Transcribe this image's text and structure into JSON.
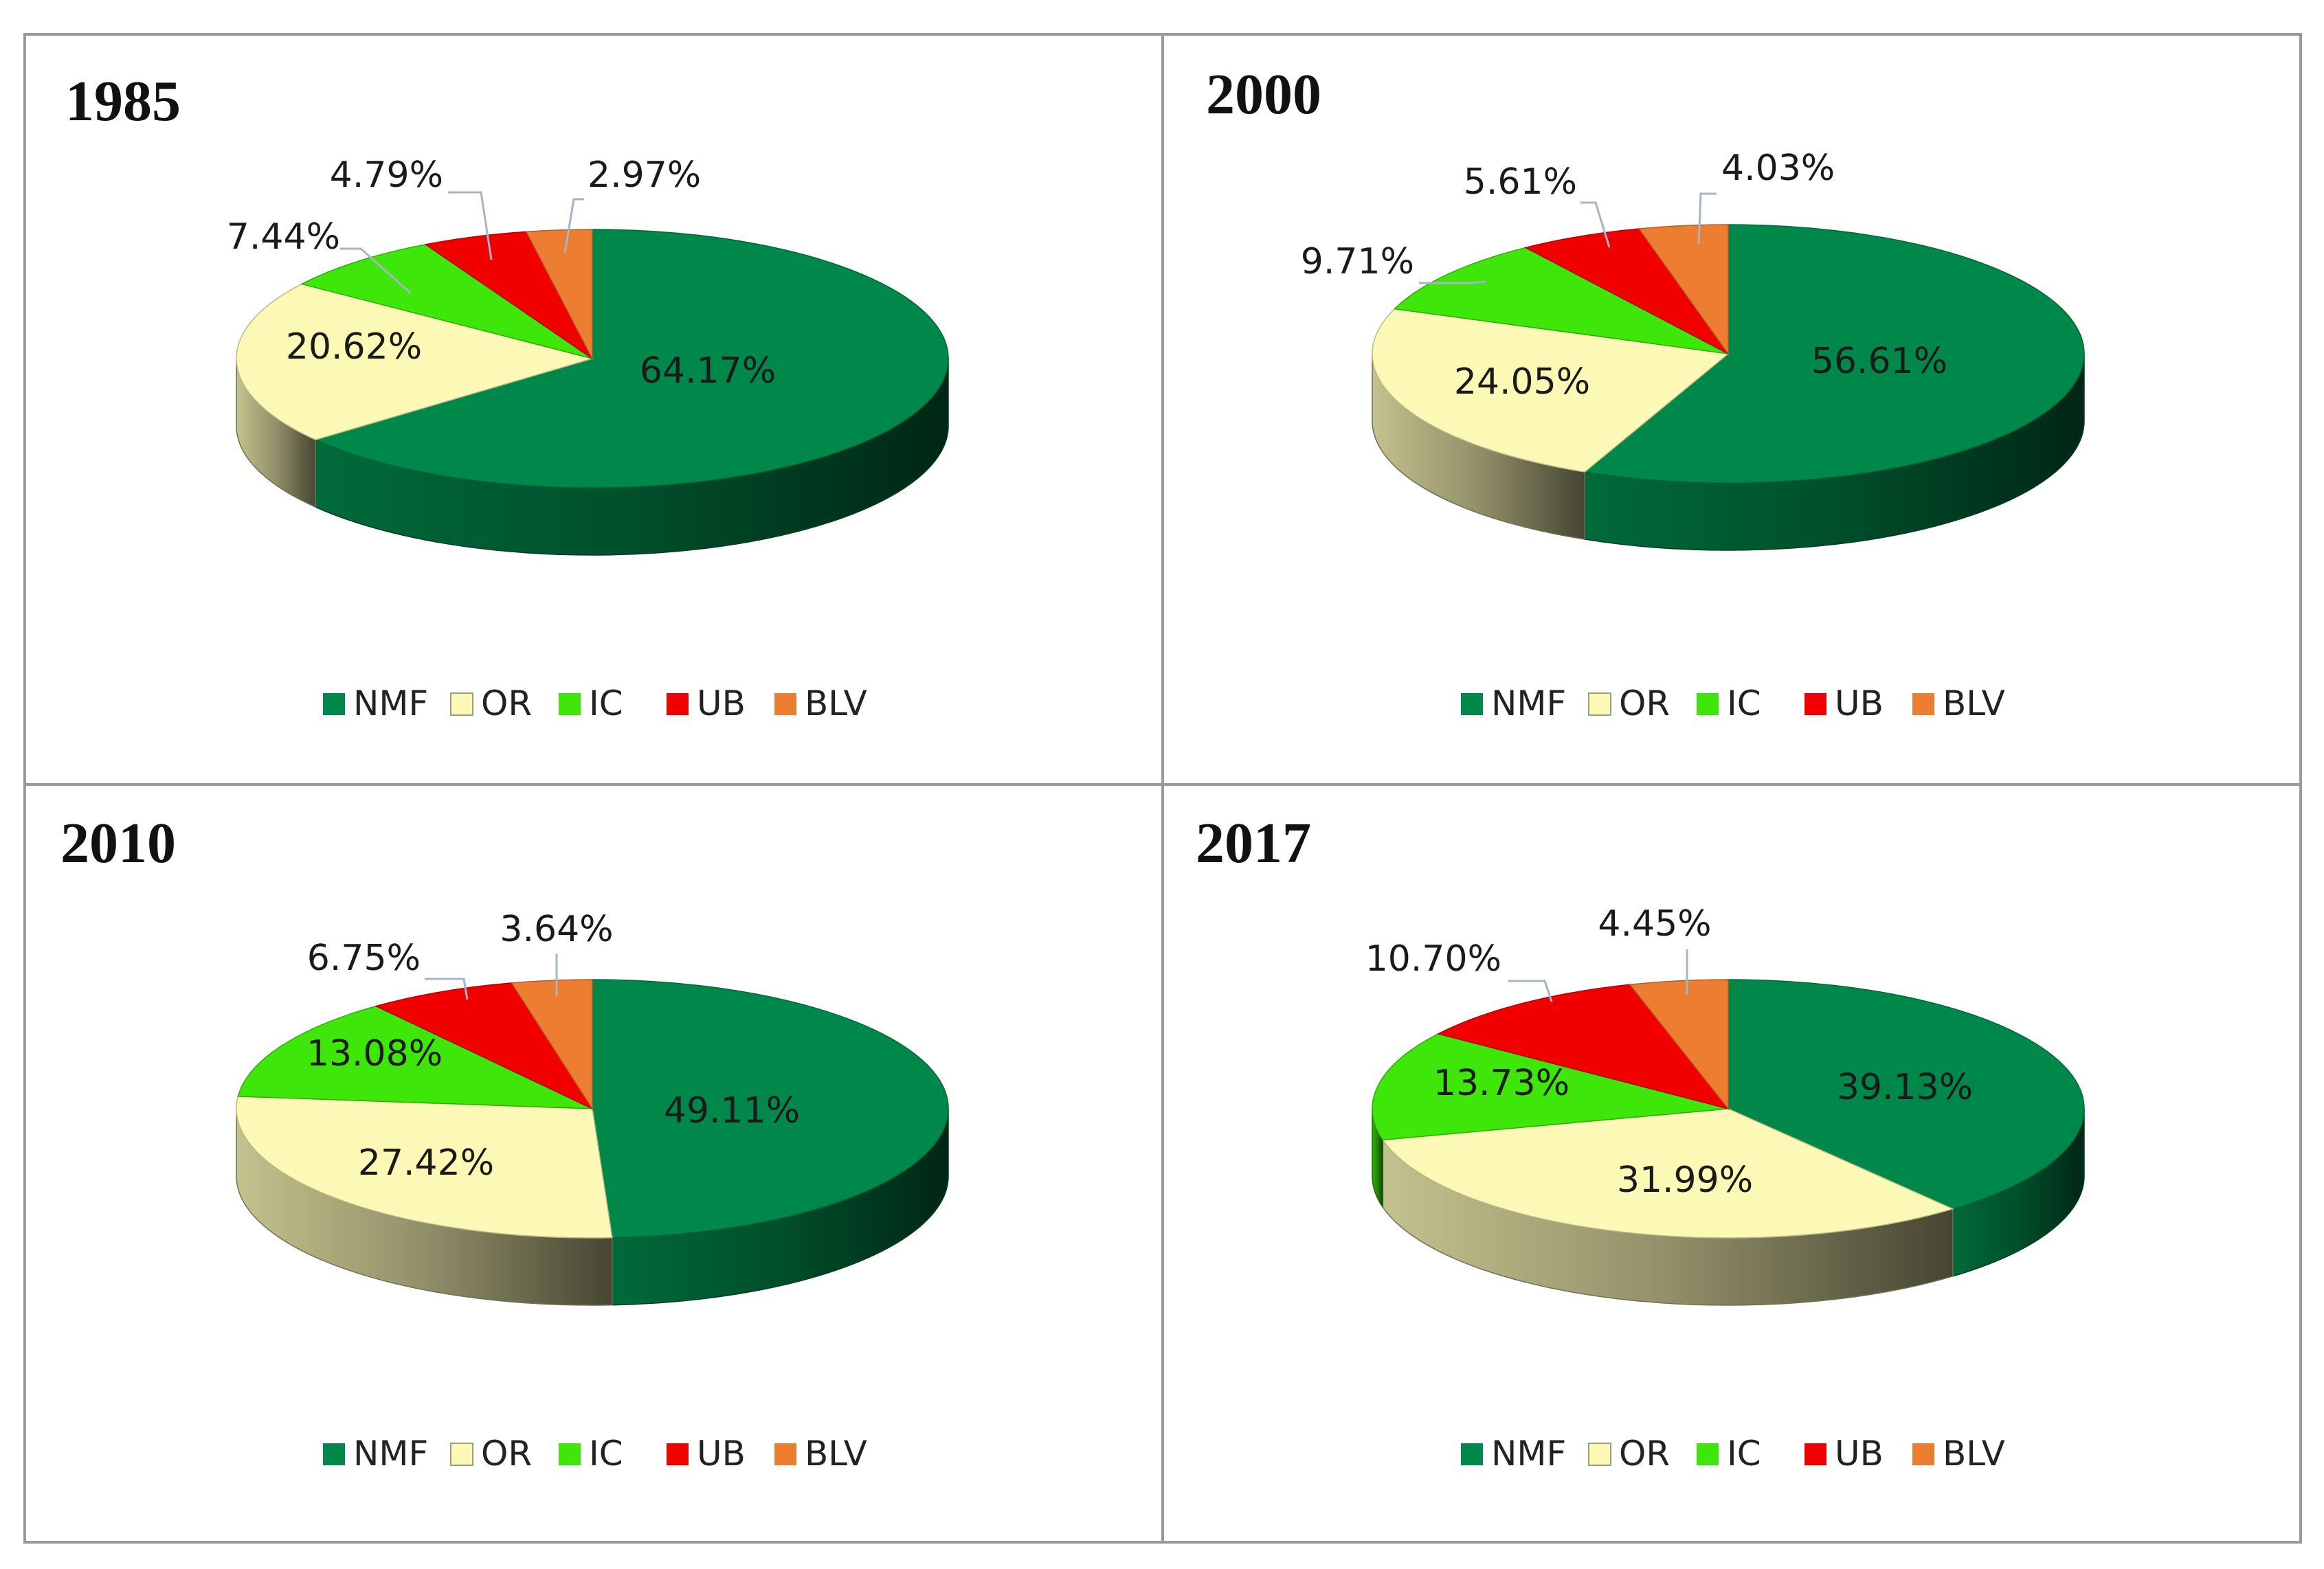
{
  "legend_categories": [
    "NMF",
    "OR",
    "IC",
    "UB",
    "BLV"
  ],
  "colors": {
    "NMF": "#00884a",
    "OR": "#fbf9b5",
    "IC": "#3ee60a",
    "UB": "#f20000",
    "BLV": "#ed7d31"
  },
  "chart_data": [
    {
      "type": "pie",
      "title": "1985",
      "categories": [
        "NMF",
        "OR",
        "IC",
        "UB",
        "BLV"
      ],
      "values": [
        64.17,
        20.62,
        7.44,
        4.79,
        2.97
      ],
      "labels": [
        "64.17%",
        "20.62%",
        "7.44%",
        "4.79%",
        "2.97%"
      ]
    },
    {
      "type": "pie",
      "title": "2000",
      "categories": [
        "NMF",
        "OR",
        "IC",
        "UB",
        "BLV"
      ],
      "values": [
        56.61,
        24.05,
        9.71,
        5.61,
        4.03
      ],
      "labels": [
        "56.61%",
        "24.05%",
        "9.71%",
        "5.61%",
        "4.03%"
      ]
    },
    {
      "type": "pie",
      "title": "2010",
      "categories": [
        "NMF",
        "OR",
        "IC",
        "UB",
        "BLV"
      ],
      "values": [
        49.11,
        27.42,
        13.08,
        6.75,
        3.64
      ],
      "labels": [
        "49.11%",
        "27.42%",
        "13.08%",
        "6.75%",
        "3.64%"
      ]
    },
    {
      "type": "pie",
      "title": "2017",
      "categories": [
        "NMF",
        "OR",
        "IC",
        "UB",
        "BLV"
      ],
      "values": [
        39.13,
        31.99,
        13.73,
        10.7,
        4.45
      ],
      "labels": [
        "39.13%",
        "31.99%",
        "13.73%",
        "10.70%",
        "4.45%"
      ]
    }
  ]
}
